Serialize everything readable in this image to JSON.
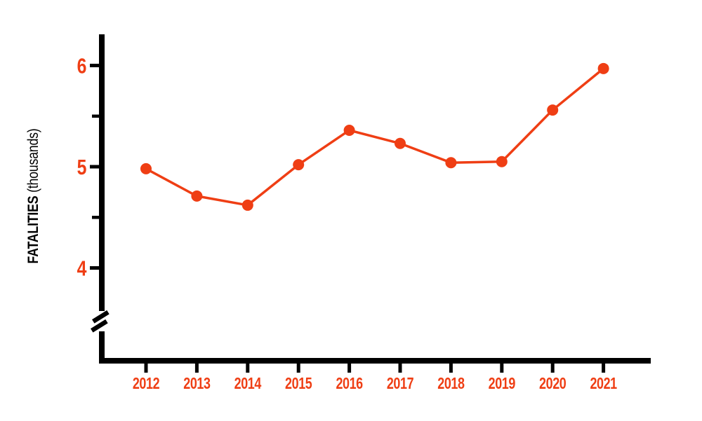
{
  "chart_data": {
    "type": "line",
    "categories": [
      "2012",
      "2013",
      "2014",
      "2015",
      "2016",
      "2017",
      "2018",
      "2019",
      "2020",
      "2021"
    ],
    "values": [
      4.98,
      4.71,
      4.62,
      5.02,
      5.36,
      5.23,
      5.04,
      5.05,
      5.56,
      5.97
    ],
    "title": "",
    "xlabel": "",
    "ylabel": "FATALITIES",
    "ylabel_unit": "(thousands)",
    "y_ticks_labeled": [
      6,
      5,
      4
    ],
    "y_ticks_minor": [
      5.5,
      4.5
    ],
    "ylim": [
      3.5,
      6.3
    ],
    "axis_break_below": 4,
    "grid": false,
    "legend": false,
    "marker": "circle",
    "colors": {
      "line": "#EF3E14",
      "marker": "#EF3E14",
      "tick_label": "#EF3E14",
      "axis": "#000000",
      "background": "#FFFFFF"
    }
  }
}
